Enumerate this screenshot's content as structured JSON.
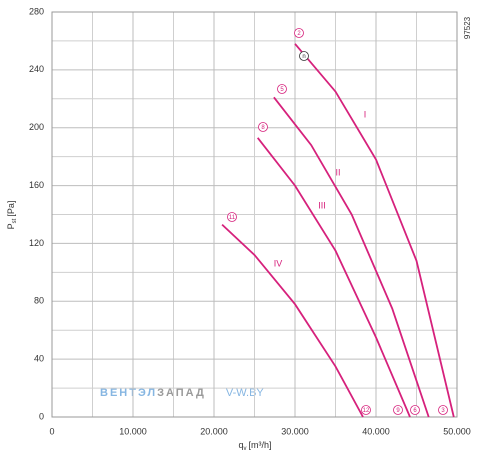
{
  "chart_data": {
    "type": "line",
    "y_label": {
      "main": "P",
      "sub": "st",
      "unit": "[Pa]"
    },
    "x_label": {
      "main": "q",
      "sub": "v",
      "unit": "[m³/h]"
    },
    "code": "97523",
    "watermark": [
      "ВЕНТЭЛ",
      "ЗАПАД",
      "V-W.BY"
    ],
    "xlim": [
      0,
      50000
    ],
    "xticks": [
      0,
      {
        "value": 10000,
        "label": "10.000"
      },
      {
        "value": 20000,
        "label": "20.000"
      },
      {
        "value": 30000,
        "label": "30.000"
      },
      {
        "value": 40000,
        "label": "40.000"
      },
      {
        "value": 50000,
        "label": "50.000"
      }
    ],
    "x_minor_grid": [
      5000,
      15000,
      25000,
      35000,
      45000
    ],
    "ylim": [
      0,
      280
    ],
    "yticks": [
      0,
      40,
      80,
      120,
      160,
      200,
      240,
      280
    ],
    "y_minor_grid": [
      20,
      60,
      100,
      140,
      180,
      220,
      260
    ],
    "grid": true,
    "series": [
      {
        "name": "I",
        "color": "#d6217c",
        "x": [
          30000,
          35000,
          40000,
          45000,
          49600
        ],
        "values": [
          258,
          225,
          178,
          108,
          0
        ]
      },
      {
        "name": "II",
        "color": "#d6217c",
        "x": [
          27400,
          32000,
          37000,
          42000,
          46500
        ],
        "values": [
          221,
          188,
          140,
          75,
          0
        ]
      },
      {
        "name": "III",
        "color": "#d6217c",
        "x": [
          25400,
          30000,
          35000,
          40000,
          44200
        ],
        "values": [
          193,
          160,
          115,
          55,
          0
        ]
      },
      {
        "name": "IV",
        "color": "#d6217c",
        "x": [
          21000,
          25000,
          30000,
          35000,
          38400
        ],
        "values": [
          133,
          112,
          78,
          35,
          0
        ]
      }
    ],
    "annotations": [
      "2",
      "n",
      "5",
      "8",
      "11",
      "12",
      "9",
      "6",
      "3"
    ]
  }
}
